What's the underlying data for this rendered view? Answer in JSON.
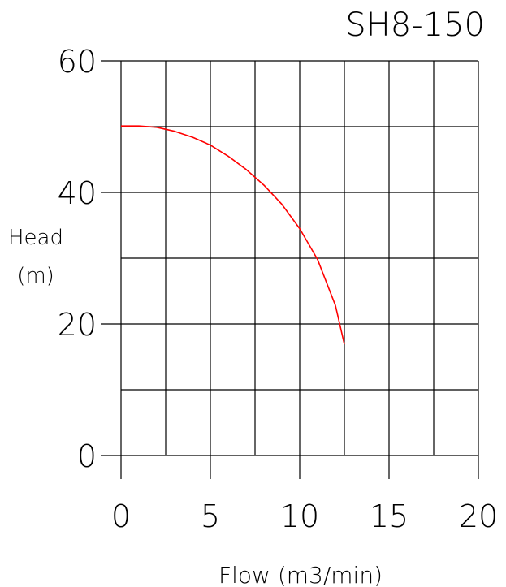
{
  "chart_data": {
    "type": "line",
    "title": "SH8-150",
    "xlabel": "Flow (m3/min)",
    "ylabel_line1": "Head",
    "ylabel_line2": "(m)",
    "xlim": [
      0,
      20
    ],
    "ylim": [
      0,
      60
    ],
    "x_ticks": [
      0,
      5,
      10,
      15,
      20
    ],
    "y_ticks": [
      0,
      20,
      40,
      60
    ],
    "x_gridlines": [
      0,
      2.5,
      5,
      7.5,
      10,
      12.5,
      15,
      17.5,
      20
    ],
    "y_gridlines": [
      0,
      10,
      20,
      30,
      40,
      50,
      60
    ],
    "grid": true,
    "series": [
      {
        "color": "#ff0000",
        "x": [
          0,
          1,
          2,
          3,
          4,
          5,
          6,
          7,
          8,
          9,
          10,
          11,
          12,
          12.5
        ],
        "y": [
          50.1,
          50.1,
          49.9,
          49.3,
          48.4,
          47.2,
          45.5,
          43.5,
          41.1,
          38.2,
          34.5,
          29.8,
          22.8,
          16.9
        ]
      }
    ]
  }
}
